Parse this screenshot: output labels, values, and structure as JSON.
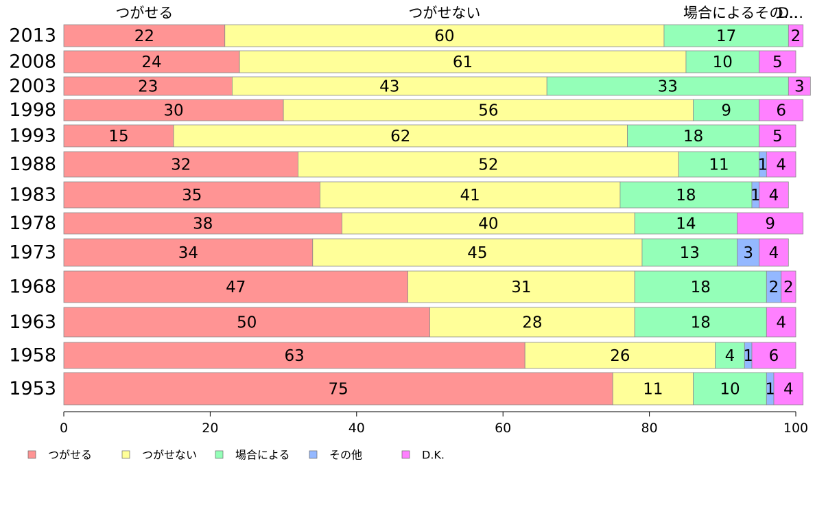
{
  "chart_data": {
    "type": "bar",
    "orientation": "horizontal",
    "stacked": true,
    "xlim": [
      0,
      100
    ],
    "xticks": [
      0,
      20,
      40,
      60,
      80,
      100
    ],
    "categories": [
      "2013",
      "2008",
      "2003",
      "1998",
      "1993",
      "1988",
      "1983",
      "1978",
      "1973",
      "1968",
      "1963",
      "1958",
      "1953"
    ],
    "top_labels": [
      "つがせる",
      "つがせない",
      "場合によるその…",
      "D…"
    ],
    "series": [
      {
        "name": "つがせる",
        "color": "#ff9494",
        "values": [
          22,
          24,
          23,
          30,
          15,
          32,
          35,
          38,
          34,
          47,
          50,
          63,
          75
        ]
      },
      {
        "name": "つがせない",
        "color": "#ffff99",
        "values": [
          60,
          61,
          43,
          56,
          62,
          52,
          41,
          40,
          45,
          31,
          28,
          26,
          11
        ]
      },
      {
        "name": "場合による",
        "color": "#94ffb8",
        "values": [
          17,
          10,
          33,
          9,
          18,
          11,
          18,
          14,
          13,
          18,
          18,
          4,
          10
        ]
      },
      {
        "name": "その他",
        "color": "#94b8ff",
        "values": [
          0,
          0,
          0,
          0,
          0,
          1,
          1,
          0,
          3,
          2,
          0,
          1,
          1
        ]
      },
      {
        "name": "D.K.",
        "color": "#ff80ff",
        "values": [
          2,
          5,
          3,
          6,
          5,
          4,
          4,
          9,
          4,
          2,
          4,
          6,
          4
        ]
      }
    ],
    "legend_position": "bottom"
  }
}
